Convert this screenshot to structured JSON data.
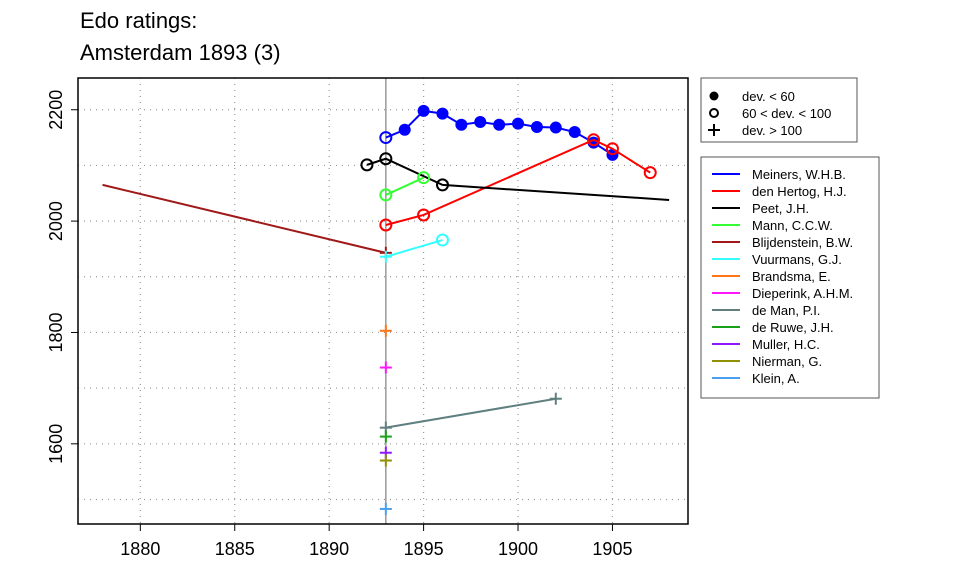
{
  "chart_data": {
    "type": "line",
    "title": [
      "Edo ratings:",
      "Amsterdam 1893 (3)"
    ],
    "xlabel": "",
    "ylabel": "",
    "xlim": [
      1876.7,
      1909.0
    ],
    "ylim": [
      1456,
      2257
    ],
    "xticks": [
      1880,
      1885,
      1890,
      1895,
      1900,
      1905
    ],
    "yticks": [
      1600,
      1800,
      2000,
      2200
    ],
    "ygrid": [
      1500,
      1600,
      1700,
      1800,
      1900,
      2000,
      2100,
      2200
    ],
    "xgrid": [
      1880,
      1885,
      1890,
      1895,
      1900,
      1905
    ],
    "grid": true,
    "reference_year": 1893,
    "marker_legend": [
      {
        "marker": "filled",
        "label": "dev. < 60"
      },
      {
        "marker": "open",
        "label": "60 < dev. < 100"
      },
      {
        "marker": "plus",
        "label": "dev. > 100"
      }
    ],
    "legend_placement": "right",
    "series": [
      {
        "name": "Meiners, W.H.B.",
        "color": "#0000ff",
        "points": [
          [
            1893,
            2150,
            "open"
          ],
          [
            1894,
            2164,
            "filled"
          ],
          [
            1895,
            2198,
            "filled"
          ],
          [
            1896,
            2193,
            "filled"
          ],
          [
            1897,
            2173,
            "filled"
          ],
          [
            1898,
            2178,
            "filled"
          ],
          [
            1899,
            2173,
            "filled"
          ],
          [
            1900,
            2175,
            "filled"
          ],
          [
            1901,
            2169,
            "filled"
          ],
          [
            1902,
            2168,
            "filled"
          ],
          [
            1903,
            2160,
            "filled"
          ],
          [
            1904,
            2141,
            "filled"
          ],
          [
            1905,
            2119,
            "filled"
          ]
        ]
      },
      {
        "name": "den Hertog, H.J.",
        "color": "#ff0000",
        "points": [
          [
            1893,
            1993,
            "open"
          ],
          [
            1895,
            2011,
            "open"
          ],
          [
            1904,
            2146,
            "open"
          ],
          [
            1905,
            2130,
            "open"
          ],
          [
            1907,
            2087,
            "open"
          ]
        ]
      },
      {
        "name": "Peet, J.H.",
        "color": "#000000",
        "points": [
          [
            1892,
            2101,
            "open"
          ],
          [
            1893,
            2112,
            "open"
          ],
          [
            1896,
            2065,
            "open"
          ],
          [
            1908,
            2038,
            "none"
          ]
        ]
      },
      {
        "name": "Mann, C.C.W.",
        "color": "#33ff33",
        "points": [
          [
            1893,
            2047,
            "open"
          ],
          [
            1895,
            2078,
            "open"
          ]
        ]
      },
      {
        "name": "Blijdenstein, B.W.",
        "color": "#a01818",
        "points": [
          [
            1878,
            2065,
            "none"
          ],
          [
            1893,
            1943,
            "plus"
          ]
        ]
      },
      {
        "name": "Vuurmans, G.J.",
        "color": "#33ffff",
        "points": [
          [
            1893,
            1936,
            "plus"
          ],
          [
            1896,
            1966,
            "open"
          ]
        ]
      },
      {
        "name": "Brandsma, E.",
        "color": "#ff7518",
        "points": [
          [
            1893,
            1803,
            "plus"
          ]
        ]
      },
      {
        "name": "Dieperink, A.H.M.",
        "color": "#ff18ff",
        "points": [
          [
            1893,
            1737,
            "plus"
          ]
        ]
      },
      {
        "name": "de Man, P.I.",
        "color": "#607f7f",
        "points": [
          [
            1893,
            1629,
            "plus"
          ],
          [
            1902,
            1681,
            "plus"
          ]
        ]
      },
      {
        "name": "de Ruwe, J.H.",
        "color": "#18a018",
        "points": [
          [
            1893,
            1613,
            "plus"
          ]
        ]
      },
      {
        "name": "Muller, H.C.",
        "color": "#9018ff",
        "points": [
          [
            1893,
            1584,
            "plus"
          ]
        ]
      },
      {
        "name": "Nierman, G.",
        "color": "#909000",
        "points": [
          [
            1893,
            1570,
            "plus"
          ]
        ]
      },
      {
        "name": "Klein, A.",
        "color": "#4ca0f0",
        "points": [
          [
            1893,
            1483,
            "plus"
          ]
        ]
      }
    ]
  }
}
